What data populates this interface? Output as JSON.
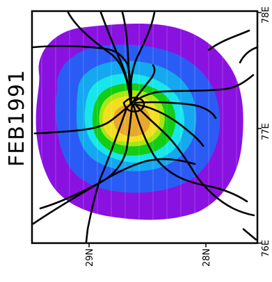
{
  "title": "FEB1991",
  "axes": {
    "lat_labels": [
      "29N",
      "28N"
    ],
    "lon_labels": [
      "78E",
      "77E",
      "76E"
    ]
  },
  "colors": {
    "purple": "#8a12e0",
    "blue": "#2a5cf5",
    "sky": "#14a8f0",
    "cyan": "#18e6ea",
    "green": "#12cc16",
    "lime": "#a8e614",
    "yellow": "#f2e020",
    "orange": "#e8a830",
    "road": "#000000"
  },
  "legend": {
    "icons": [
      "road-network-icon"
    ]
  }
}
